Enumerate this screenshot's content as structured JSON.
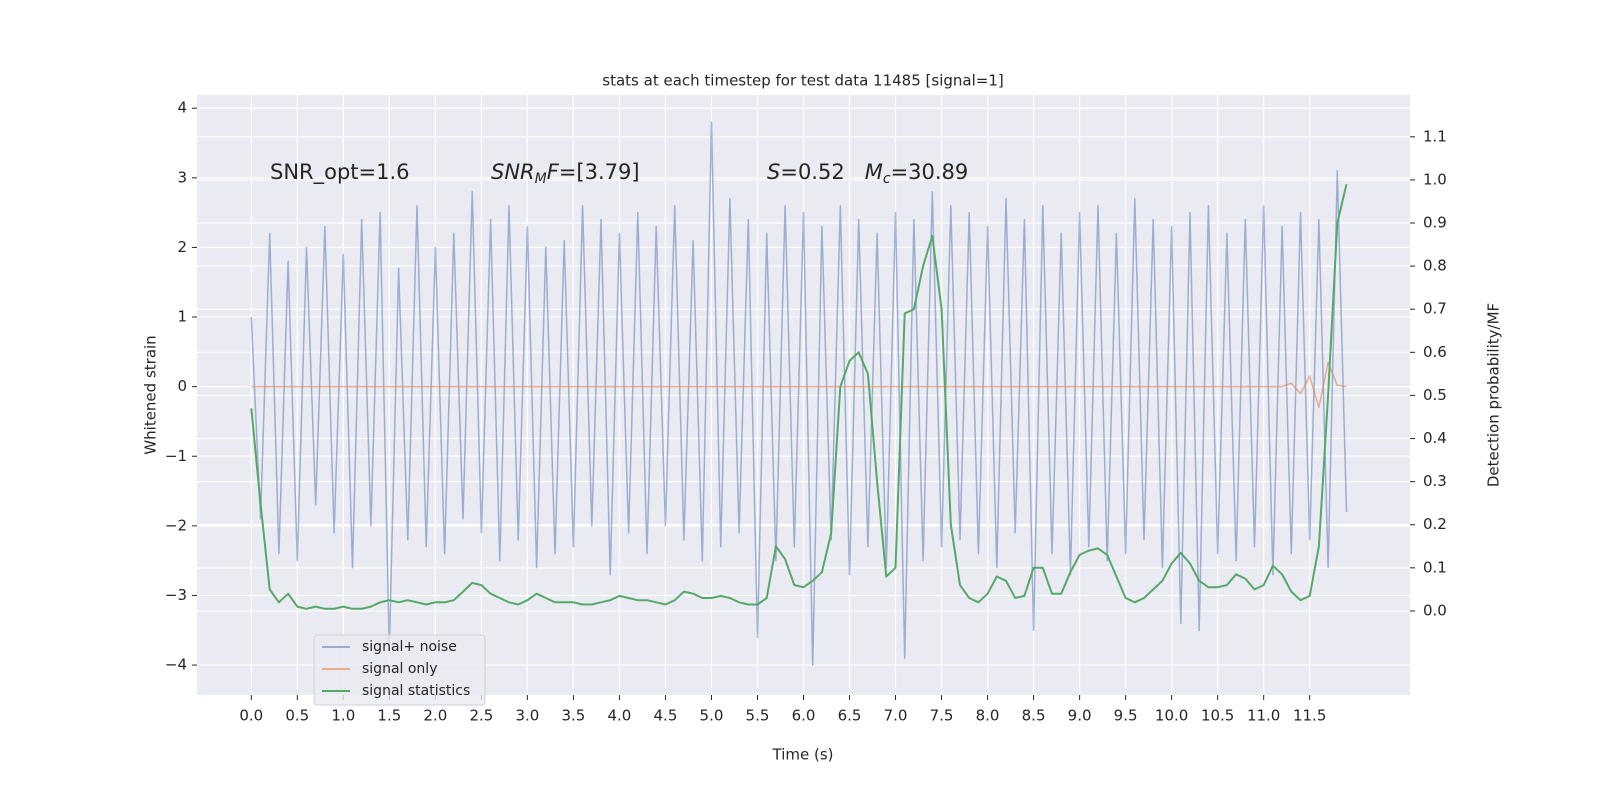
{
  "chart_data": {
    "type": "line",
    "title": "stats at each timestep for test data 11485 [signal=1]",
    "xlabel": "Time (s)",
    "ylabel": "Whitened strain",
    "y2label": "Detection probability/MF",
    "grid": true,
    "legend": "lower left",
    "annotations": [
      {
        "parts": [
          {
            "text": "SNR_opt=1.6",
            "style": "normal"
          }
        ]
      },
      {
        "parts": [
          {
            "text": "SNR",
            "style": "italic"
          },
          {
            "text": "M",
            "style": "italic-sub"
          },
          {
            "text": "F",
            "style": "italic"
          },
          {
            "text": "=[3.79]",
            "style": "normal"
          }
        ]
      },
      {
        "parts": [
          {
            "text": "S",
            "style": "italic"
          },
          {
            "text": "=0.52   ",
            "style": "normal"
          },
          {
            "text": "M",
            "style": "italic"
          },
          {
            "text": "c",
            "style": "italic-sub"
          },
          {
            "text": "=30.89",
            "style": "normal"
          }
        ]
      }
    ],
    "xlim": [
      -0.59,
      12.59
    ],
    "ylim": [
      -4.43,
      4.19
    ],
    "y2lim": [
      -0.195,
      1.197
    ],
    "xticks": [
      {
        "value": 0,
        "label": "0.0"
      },
      0.5,
      {
        "value": 1,
        "label": "1.0"
      },
      1.5,
      {
        "value": 2,
        "label": "2.0"
      },
      2.5,
      {
        "value": 3,
        "label": "3.0"
      },
      3.5,
      {
        "value": 4,
        "label": "4.0"
      },
      4.5,
      {
        "value": 5,
        "label": "5.0"
      },
      5.5,
      {
        "value": 6,
        "label": "6.0"
      },
      6.5,
      {
        "value": 7,
        "label": "7.0"
      },
      7.5,
      {
        "value": 8,
        "label": "8.0"
      },
      8.5,
      {
        "value": 9,
        "label": "9.0"
      },
      9.5,
      {
        "value": 10,
        "label": "10.0"
      },
      10.5,
      {
        "value": 11,
        "label": "11.0"
      },
      11.5
    ],
    "yticks": [
      {
        "value": -4,
        "label": "−4"
      },
      {
        "value": -3,
        "label": "−3"
      },
      {
        "value": -2,
        "label": "−2"
      },
      {
        "value": -1,
        "label": "−1"
      },
      0,
      1,
      2,
      3,
      4
    ],
    "y2ticks": [
      {
        "value": 0,
        "label": "0.0"
      },
      0.1,
      0.2,
      0.3,
      0.4,
      0.5,
      0.6,
      0.7,
      0.8,
      0.9,
      {
        "value": 1,
        "label": "1.0"
      },
      1.1
    ],
    "x": [
      0,
      0.1,
      0.2,
      0.3,
      0.4,
      0.5,
      0.6,
      0.7,
      0.8,
      0.9,
      1,
      1.1,
      1.2,
      1.3,
      1.4,
      1.5,
      1.6,
      1.7,
      1.8,
      1.9,
      2,
      2.1,
      2.2,
      2.3,
      2.4,
      2.5,
      2.6,
      2.7,
      2.8,
      2.9,
      3,
      3.1,
      3.2,
      3.3,
      3.4,
      3.5,
      3.6,
      3.7,
      3.8,
      3.9,
      4,
      4.1,
      4.2,
      4.3,
      4.4,
      4.5,
      4.6,
      4.7,
      4.8,
      4.9,
      5,
      5.1,
      5.2,
      5.3,
      5.4,
      5.5,
      5.6,
      5.7,
      5.8,
      5.9,
      6,
      6.1,
      6.2,
      6.3,
      6.4,
      6.5,
      6.6,
      6.7,
      6.8,
      6.9,
      7,
      7.1,
      7.2,
      7.3,
      7.4,
      7.5,
      7.6,
      7.7,
      7.8,
      7.9,
      8,
      8.1,
      8.2,
      8.3,
      8.4,
      8.5,
      8.6,
      8.7,
      8.8,
      8.9,
      9,
      9.1,
      9.2,
      9.3,
      9.4,
      9.5,
      9.6,
      9.7,
      9.8,
      9.9,
      10,
      10.1,
      10.2,
      10.3,
      10.4,
      10.5,
      10.6,
      10.7,
      10.8,
      10.9,
      11,
      11.1,
      11.2,
      11.3,
      11.4,
      11.5,
      11.6,
      11.7,
      11.8,
      11.9
    ],
    "series": [
      {
        "name": "signal+ noise",
        "color": "#4c72b0",
        "opacity": 0.5,
        "axis": "y",
        "values": [
          1.0,
          -1.9,
          2.2,
          -2.4,
          1.8,
          -2.5,
          2.0,
          -1.7,
          2.3,
          -2.1,
          1.9,
          -2.6,
          2.4,
          -2.0,
          2.5,
          -3.8,
          1.7,
          -2.2,
          2.6,
          -2.3,
          2.0,
          -2.4,
          2.2,
          -1.9,
          2.8,
          -2.1,
          2.4,
          -2.5,
          2.6,
          -2.2,
          2.3,
          -2.6,
          2.0,
          -2.4,
          2.1,
          -2.3,
          2.6,
          -2.0,
          2.4,
          -2.7,
          2.2,
          -2.1,
          2.5,
          -2.4,
          2.3,
          -2.0,
          2.6,
          -2.2,
          2.1,
          -2.5,
          3.8,
          -2.3,
          2.7,
          -2.1,
          2.4,
          -3.6,
          2.2,
          -2.5,
          2.6,
          -2.3,
          2.5,
          -4.0,
          2.3,
          -2.2,
          2.6,
          -2.7,
          2.4,
          -2.3,
          2.2,
          -2.6,
          2.5,
          -3.9,
          2.4,
          -2.5,
          2.8,
          -2.3,
          2.6,
          -2.2,
          2.5,
          -2.4,
          2.3,
          -2.6,
          2.7,
          -2.1,
          2.4,
          -3.5,
          2.6,
          -2.4,
          2.2,
          -2.7,
          2.5,
          -2.3,
          2.6,
          -2.5,
          2.2,
          -2.4,
          2.7,
          -2.2,
          2.4,
          -2.6,
          2.3,
          -3.4,
          2.5,
          -3.5,
          2.6,
          -2.4,
          2.2,
          -2.5,
          2.4,
          -2.3,
          2.6,
          -2.7,
          2.3,
          -2.4,
          2.5,
          -2.2,
          2.4,
          -2.6,
          3.1,
          -1.8
        ]
      },
      {
        "name": "signal only",
        "color": "#dd8452",
        "opacity": 0.6,
        "axis": "y",
        "values": [
          0,
          0,
          0,
          0,
          0,
          0,
          0,
          0,
          0,
          0,
          0,
          0,
          0,
          0,
          0,
          0,
          0,
          0,
          0,
          0,
          0,
          0,
          0,
          0,
          0,
          0,
          0,
          0,
          0,
          0,
          0,
          0,
          0,
          0,
          0,
          0,
          0,
          0,
          0,
          0,
          0,
          0,
          0,
          0,
          0,
          0,
          0,
          0,
          0,
          0,
          0,
          0,
          0,
          0,
          0,
          0,
          0,
          0,
          0,
          0,
          0,
          0,
          0,
          0,
          0,
          0,
          0,
          0,
          0,
          0,
          0,
          0,
          0,
          0,
          0,
          0,
          0,
          0,
          0,
          0,
          0,
          0,
          0,
          0,
          0,
          0,
          0,
          0,
          0,
          0,
          0,
          0,
          0,
          0,
          0,
          0,
          0,
          0,
          0,
          0,
          0,
          0,
          0,
          0,
          0,
          0,
          0,
          0,
          0,
          0,
          0,
          0,
          0,
          0.05,
          -0.1,
          0.15,
          -0.3,
          0.35,
          0.02,
          0
        ]
      },
      {
        "name": "signal statistics",
        "color": "#55a868",
        "opacity": 1,
        "axis": "y2",
        "values": [
          0.47,
          0.25,
          0.05,
          0.02,
          0.04,
          0.01,
          0.005,
          0.01,
          0.005,
          0.005,
          0.01,
          0.005,
          0.005,
          0.01,
          0.02,
          0.025,
          0.02,
          0.025,
          0.02,
          0.015,
          0.02,
          0.02,
          0.025,
          0.045,
          0.065,
          0.06,
          0.04,
          0.03,
          0.02,
          0.015,
          0.025,
          0.04,
          0.03,
          0.02,
          0.02,
          0.02,
          0.015,
          0.015,
          0.02,
          0.025,
          0.035,
          0.03,
          0.025,
          0.025,
          0.02,
          0.015,
          0.025,
          0.045,
          0.04,
          0.03,
          0.03,
          0.035,
          0.03,
          0.02,
          0.015,
          0.015,
          0.03,
          0.15,
          0.12,
          0.06,
          0.055,
          0.07,
          0.09,
          0.18,
          0.52,
          0.58,
          0.6,
          0.55,
          0.3,
          0.08,
          0.1,
          0.69,
          0.7,
          0.8,
          0.87,
          0.7,
          0.2,
          0.06,
          0.03,
          0.02,
          0.04,
          0.08,
          0.07,
          0.03,
          0.035,
          0.1,
          0.1,
          0.04,
          0.04,
          0.09,
          0.13,
          0.14,
          0.145,
          0.13,
          0.08,
          0.03,
          0.02,
          0.03,
          0.05,
          0.07,
          0.11,
          0.135,
          0.11,
          0.07,
          0.055,
          0.055,
          0.06,
          0.085,
          0.075,
          0.05,
          0.06,
          0.105,
          0.085,
          0.045,
          0.025,
          0.035,
          0.15,
          0.5,
          0.9,
          0.99
        ]
      }
    ]
  }
}
